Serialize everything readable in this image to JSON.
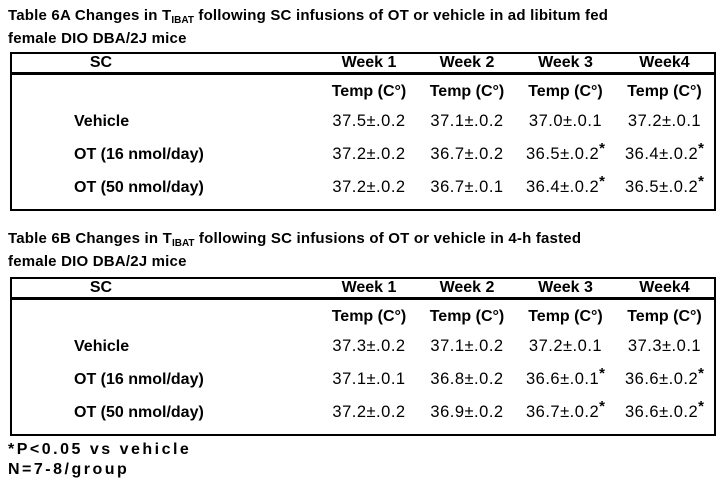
{
  "tables": {
    "a": {
      "title": {
        "pre": "Table 6A Changes in T",
        "sub": "IBAT",
        "post": " following SC infusions of OT or vehicle in ad libitum fed",
        "line2": "female DIO DBA/2J mice"
      },
      "header": {
        "label": "SC",
        "weeks": [
          "Week 1",
          "Week 2",
          "Week 3",
          "Week4"
        ]
      },
      "subheader": [
        "Temp (C°)",
        "Temp (C°)",
        "Temp (C°)",
        "Temp (C°)"
      ],
      "rows": [
        {
          "label": "Vehicle",
          "cells": [
            {
              "text": "37.5±.0.2",
              "star": ""
            },
            {
              "text": "37.1±.0.2",
              "star": ""
            },
            {
              "text": "37.0±.0.1",
              "star": ""
            },
            {
              "text": "37.2±.0.1",
              "star": ""
            }
          ]
        },
        {
          "label": "OT (16 nmol/day)",
          "cells": [
            {
              "text": "37.2±.0.2",
              "star": ""
            },
            {
              "text": "36.7±.0.2",
              "star": ""
            },
            {
              "text": "36.5±.0.2",
              "star": "*"
            },
            {
              "text": "36.4±.0.2",
              "star": "*"
            }
          ]
        },
        {
          "label": "OT (50 nmol/day)",
          "cells": [
            {
              "text": "37.2±.0.2",
              "star": ""
            },
            {
              "text": "36.7±.0.1",
              "star": ""
            },
            {
              "text": "36.4±.0.2",
              "star": "*"
            },
            {
              "text": "36.5±.0.2",
              "star": "*"
            }
          ]
        }
      ]
    },
    "b": {
      "title": {
        "pre": "Table 6B Changes in T",
        "sub": "IBAT",
        "post": " following SC infusions of OT or vehicle in 4-h fasted",
        "line2": "female DIO DBA/2J mice"
      },
      "header": {
        "label": "SC",
        "weeks": [
          "Week 1",
          "Week 2",
          "Week 3",
          "Week4"
        ]
      },
      "subheader": [
        "Temp (C°)",
        "Temp (C°)",
        "Temp (C°)",
        "Temp (C°)"
      ],
      "rows": [
        {
          "label": "Vehicle",
          "cells": [
            {
              "text": "37.3±.0.2",
              "star": ""
            },
            {
              "text": "37.1±.0.2",
              "star": ""
            },
            {
              "text": "37.2±.0.1",
              "star": ""
            },
            {
              "text": "37.3±.0.1",
              "star": ""
            }
          ]
        },
        {
          "label": "OT (16 nmol/day)",
          "cells": [
            {
              "text": "37.1±.0.1",
              "star": ""
            },
            {
              "text": "36.8±.0.2",
              "star": ""
            },
            {
              "text": "36.6±.0.1",
              "star": "*"
            },
            {
              "text": "36.6±.0.2",
              "star": "*"
            }
          ]
        },
        {
          "label": "OT (50 nmol/day)",
          "cells": [
            {
              "text": "37.2±.0.2",
              "star": ""
            },
            {
              "text": "36.9±.0.2",
              "star": ""
            },
            {
              "text": "36.7±.0.2",
              "star": "*"
            },
            {
              "text": "36.6±.0.2",
              "star": "*"
            }
          ]
        }
      ]
    }
  },
  "footnotes": {
    "line1": "*P<0.05 vs vehicle",
    "line2": "N=7-8/group"
  },
  "colors": {
    "text": "#000000",
    "background": "#ffffff",
    "border": "#000000"
  }
}
